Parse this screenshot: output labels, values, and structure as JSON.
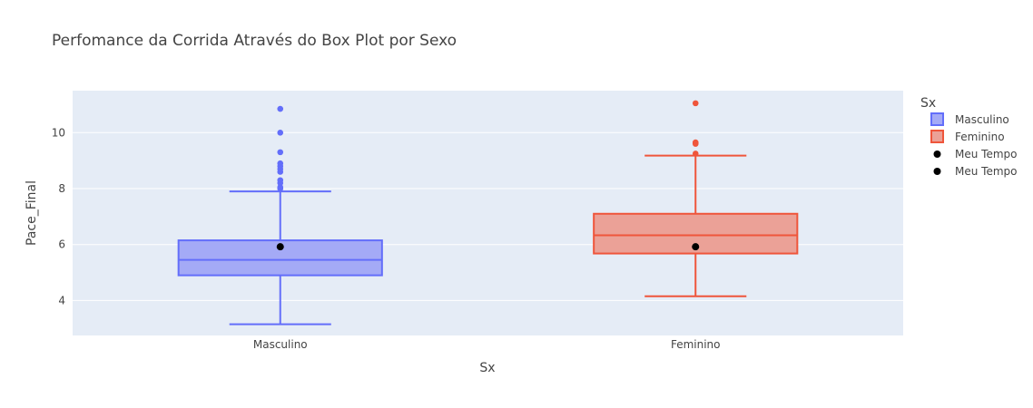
{
  "chart_data": {
    "type": "box",
    "title": "Perfomance da Corrida Através do Box Plot por Sexo",
    "xlabel": "Sx",
    "ylabel": "Pace_Final",
    "categories": [
      "Masculino",
      "Feminino"
    ],
    "ylim": [
      2.75,
      11.5
    ],
    "yticks": [
      4,
      6,
      8,
      10
    ],
    "grid": true,
    "background_color": "#E5ECF6",
    "legend": {
      "title": "Sx",
      "placement": "right",
      "entries": [
        "Masculino",
        "Feminino",
        "Meu Tempo",
        "Meu Tempo"
      ]
    },
    "series": [
      {
        "name": "Masculino",
        "category": "Masculino",
        "color": "#636EFA",
        "fill": "#A4AAF6",
        "min": 3.15,
        "q1": 4.9,
        "median": 5.45,
        "q3": 6.15,
        "max": 7.9,
        "outliers": [
          8.0,
          8.05,
          8.2,
          8.3,
          8.6,
          8.7,
          8.8,
          8.9,
          9.3,
          10.0,
          10.85
        ]
      },
      {
        "name": "Feminino",
        "category": "Feminino",
        "color": "#EF553B",
        "fill": "#EBA197",
        "min": 4.15,
        "q1": 5.68,
        "median": 6.33,
        "q3": 7.1,
        "max": 9.18,
        "outliers": [
          9.25,
          9.6,
          9.65,
          11.05
        ]
      }
    ],
    "markers": [
      {
        "name": "Meu Tempo",
        "category": "Masculino",
        "y": 5.92,
        "color": "#000000"
      },
      {
        "name": "Meu Tempo",
        "category": "Feminino",
        "y": 5.92,
        "color": "#000000"
      }
    ]
  }
}
